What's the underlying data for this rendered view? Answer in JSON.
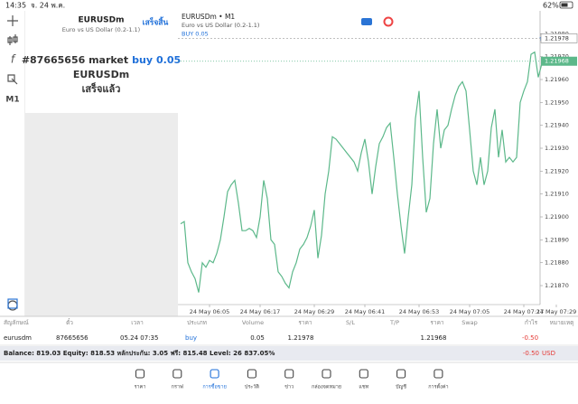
{
  "status_bar": {
    "time": "14:35",
    "date": "จ. 24 พ.ค.",
    "battery": "62%"
  },
  "toolbar": {
    "timeframe": "M1"
  },
  "order_panel": {
    "symbol": "EURUSDm",
    "description": "Euro vs US Dollar (0.2-1.1)",
    "done_button": "เสร็จสิ้น",
    "order_prefix": "#87665656 market",
    "order_side": "buy",
    "order_volume": "0.05",
    "order_symbol": "EURUSDm",
    "status": "เสร็จแล้ว"
  },
  "chart_data": {
    "type": "line",
    "title": "EURUSDm • M1",
    "subtitle": "Euro vs US Dollar (0.2-1.1)",
    "categories": [
      null,
      null,
      null,
      null,
      null,
      null,
      null,
      null,
      "24 May 06:05",
      null,
      null,
      null,
      null,
      null,
      null,
      null,
      null,
      null,
      null,
      null,
      null,
      null,
      "24 May 06:17",
      null,
      null,
      null,
      null,
      null,
      null,
      null,
      null,
      null,
      null,
      null,
      null,
      null,
      null,
      "24 May 06:29",
      null,
      null,
      null,
      null,
      null,
      null,
      null,
      null,
      null,
      null,
      null,
      null,
      null,
      "24 May 06:41",
      null,
      null,
      null,
      null,
      null,
      null,
      null,
      null,
      null,
      null,
      null,
      null,
      null,
      null,
      "24 May 06:53",
      null,
      null,
      null,
      null,
      null,
      null,
      null,
      null,
      null,
      null,
      null,
      null,
      null,
      "24 May 07:05",
      null,
      null,
      null,
      null,
      null,
      null,
      null,
      null,
      null,
      null,
      null,
      null,
      null,
      null,
      "24 May 07:17",
      null,
      null,
      null,
      null,
      null,
      null,
      null,
      null,
      "24 May 07:29"
    ],
    "series": [
      {
        "name": "EURUSDm",
        "color": "#5cb88a",
        "values": [
          1.21897,
          1.21898,
          1.2188,
          1.21876,
          1.21873,
          1.21867,
          1.2188,
          1.21878,
          1.21881,
          1.2188,
          1.21884,
          1.2189,
          1.219,
          1.21911,
          1.21914,
          1.21916,
          1.21906,
          1.21894,
          1.21894,
          1.21895,
          1.21894,
          1.21891,
          1.219,
          1.21916,
          1.21908,
          1.2189,
          1.21888,
          1.21876,
          1.21874,
          1.21871,
          1.21869,
          1.21876,
          1.2188,
          1.21886,
          1.21888,
          1.21891,
          1.21896,
          1.21903,
          1.21882,
          1.21892,
          1.2191,
          1.2192,
          1.21935,
          1.21934,
          1.21932,
          1.2193,
          1.21928,
          1.21926,
          1.21924,
          1.2192,
          1.21928,
          1.21934,
          1.21924,
          1.2191,
          1.21922,
          1.21932,
          1.21935,
          1.21939,
          1.21941,
          1.21926,
          1.2191,
          1.21896,
          1.21884,
          1.219,
          1.21914,
          1.21943,
          1.21955,
          1.21926,
          1.21902,
          1.21908,
          1.21932,
          1.21947,
          1.2193,
          1.21938,
          1.2194,
          1.21947,
          1.21953,
          1.21957,
          1.21959,
          1.21955,
          1.21938,
          1.2192,
          1.21914,
          1.21926,
          1.21914,
          1.2192,
          1.21939,
          1.21947,
          1.21926,
          1.21938,
          1.21924,
          1.21926,
          1.21924,
          1.21926,
          1.2195,
          1.21955,
          1.21959,
          1.21971,
          1.21972,
          1.21961,
          1.21967,
          1.21968,
          null,
          null,
          null
        ]
      }
    ],
    "ylim": [
      1.218625,
      1.2199
    ],
    "yticks": [
      {
        "value": 1.2187,
        "label": "1.21870"
      },
      {
        "value": 1.2188,
        "label": "1.21880"
      },
      {
        "value": 1.2189,
        "label": "1.21890"
      },
      {
        "value": 1.219,
        "label": "1.21900"
      },
      {
        "value": 1.2191,
        "label": "1.21910"
      },
      {
        "value": 1.2192,
        "label": "1.21920"
      },
      {
        "value": 1.2193,
        "label": "1.21930"
      },
      {
        "value": 1.2194,
        "label": "1.21940"
      },
      {
        "value": 1.2195,
        "label": "1.21950"
      },
      {
        "value": 1.2196,
        "label": "1.21960"
      },
      {
        "value": 1.2197,
        "label": "1.21970"
      },
      {
        "value": 1.2198,
        "label": "1.21980"
      }
    ],
    "buy_line": {
      "label": "BUY 0.05",
      "value": 1.21978
    },
    "last_price": 1.21968,
    "grid": false
  },
  "trade_table": {
    "headers": [
      "สัญลักษณ์",
      "ตั๋ว",
      "เวลา",
      "ประเภท",
      "Volume",
      "ราคา",
      "S/L",
      "T/P",
      "ราคา",
      "Swap",
      "กำไร",
      "หมายเหตุ"
    ],
    "row": {
      "symbol": "eurusdm",
      "ticket": "87665656",
      "time": "05.24 07:35",
      "type": "buy",
      "volume": "0.05",
      "open_price": "1.21978",
      "current_price": "1.21968",
      "profit": "-0.50"
    }
  },
  "summary": {
    "text": "Balance: 819.03 Equity: 818.53 หลักประกัน: 3.05 ฟรี: 815.48 Level: 26 837.05%",
    "profit": "-0.50",
    "currency": "USD"
  },
  "nav": {
    "items": [
      "ราคา",
      "กราฟ",
      "การซื้อขาย",
      "ประวัติ",
      "ข่าว",
      "กล่องจดหมาย",
      "แชท",
      "บัญชี",
      "การตั้งค่า"
    ],
    "active": 2
  }
}
